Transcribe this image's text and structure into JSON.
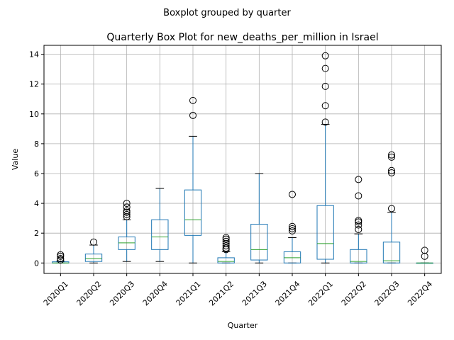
{
  "chart_data": {
    "type": "box",
    "suptitle": "Boxplot grouped by quarter",
    "title": "Quarterly Box Plot for new_deaths_per_million in Israel",
    "xlabel": "Quarter",
    "ylabel": "Value",
    "ylim": [
      -0.7,
      14.6
    ],
    "yticks": [
      0,
      2,
      4,
      6,
      8,
      10,
      12,
      14
    ],
    "grid": true,
    "colors": {
      "box": "#1f77b4",
      "median": "#2ca02c",
      "whisker": "#000000",
      "flier": "#000000",
      "grid": "#b0b0b0"
    },
    "categories": [
      "2020Q1",
      "2020Q2",
      "2020Q3",
      "2020Q4",
      "2021Q1",
      "2021Q2",
      "2021Q3",
      "2021Q4",
      "2022Q1",
      "2022Q2",
      "2022Q3",
      "2022Q4"
    ],
    "boxes": [
      {
        "label": "2020Q1",
        "whislo": 0.0,
        "q1": 0.0,
        "med": 0.0,
        "q3": 0.08,
        "whishi": 0.12,
        "fliers": [
          0.2,
          0.3,
          0.45,
          0.55
        ]
      },
      {
        "label": "2020Q2",
        "whislo": 0.0,
        "q1": 0.1,
        "med": 0.3,
        "q3": 0.6,
        "whishi": 1.2,
        "fliers": [
          1.4
        ]
      },
      {
        "label": "2020Q3",
        "whislo": 0.1,
        "q1": 0.9,
        "med": 1.35,
        "q3": 1.75,
        "whishi": 2.9,
        "fliers": [
          3.1,
          3.25,
          3.4,
          3.5,
          3.75,
          4.0
        ]
      },
      {
        "label": "2020Q4",
        "whislo": 0.1,
        "q1": 0.9,
        "med": 1.75,
        "q3": 2.9,
        "whishi": 5.0,
        "fliers": []
      },
      {
        "label": "2021Q1",
        "whislo": 0.0,
        "q1": 1.85,
        "med": 2.9,
        "q3": 4.9,
        "whishi": 8.5,
        "fliers": [
          9.9,
          10.9
        ]
      },
      {
        "label": "2021Q2",
        "whislo": 0.0,
        "q1": 0.0,
        "med": 0.1,
        "q3": 0.35,
        "whishi": 0.75,
        "fliers": [
          0.9,
          1.0,
          1.15,
          1.3,
          1.45,
          1.6,
          1.7
        ]
      },
      {
        "label": "2021Q3",
        "whislo": 0.0,
        "q1": 0.2,
        "med": 0.9,
        "q3": 2.6,
        "whishi": 6.0,
        "fliers": []
      },
      {
        "label": "2021Q4",
        "whislo": 0.0,
        "q1": 0.0,
        "med": 0.35,
        "q3": 0.75,
        "whishi": 1.7,
        "fliers": [
          2.15,
          2.3,
          2.45,
          4.6
        ]
      },
      {
        "label": "2022Q1",
        "whislo": 0.0,
        "q1": 0.25,
        "med": 1.3,
        "q3": 3.85,
        "whishi": 9.3,
        "fliers": [
          9.45,
          10.55,
          11.85,
          13.05,
          13.9
        ]
      },
      {
        "label": "2022Q2",
        "whislo": 0.0,
        "q1": 0.0,
        "med": 0.1,
        "q3": 0.9,
        "whishi": 1.95,
        "fliers": [
          2.25,
          2.55,
          2.75,
          2.85,
          4.5,
          5.6
        ]
      },
      {
        "label": "2022Q3",
        "whislo": 0.0,
        "q1": 0.0,
        "med": 0.15,
        "q3": 1.4,
        "whishi": 3.4,
        "fliers": [
          3.65,
          6.05,
          6.2,
          7.1,
          7.25
        ]
      },
      {
        "label": "2022Q4",
        "whislo": 0.0,
        "q1": 0.0,
        "med": 0.0,
        "q3": 0.0,
        "whishi": 0.0,
        "fliers": [
          0.45,
          0.85
        ]
      }
    ]
  }
}
